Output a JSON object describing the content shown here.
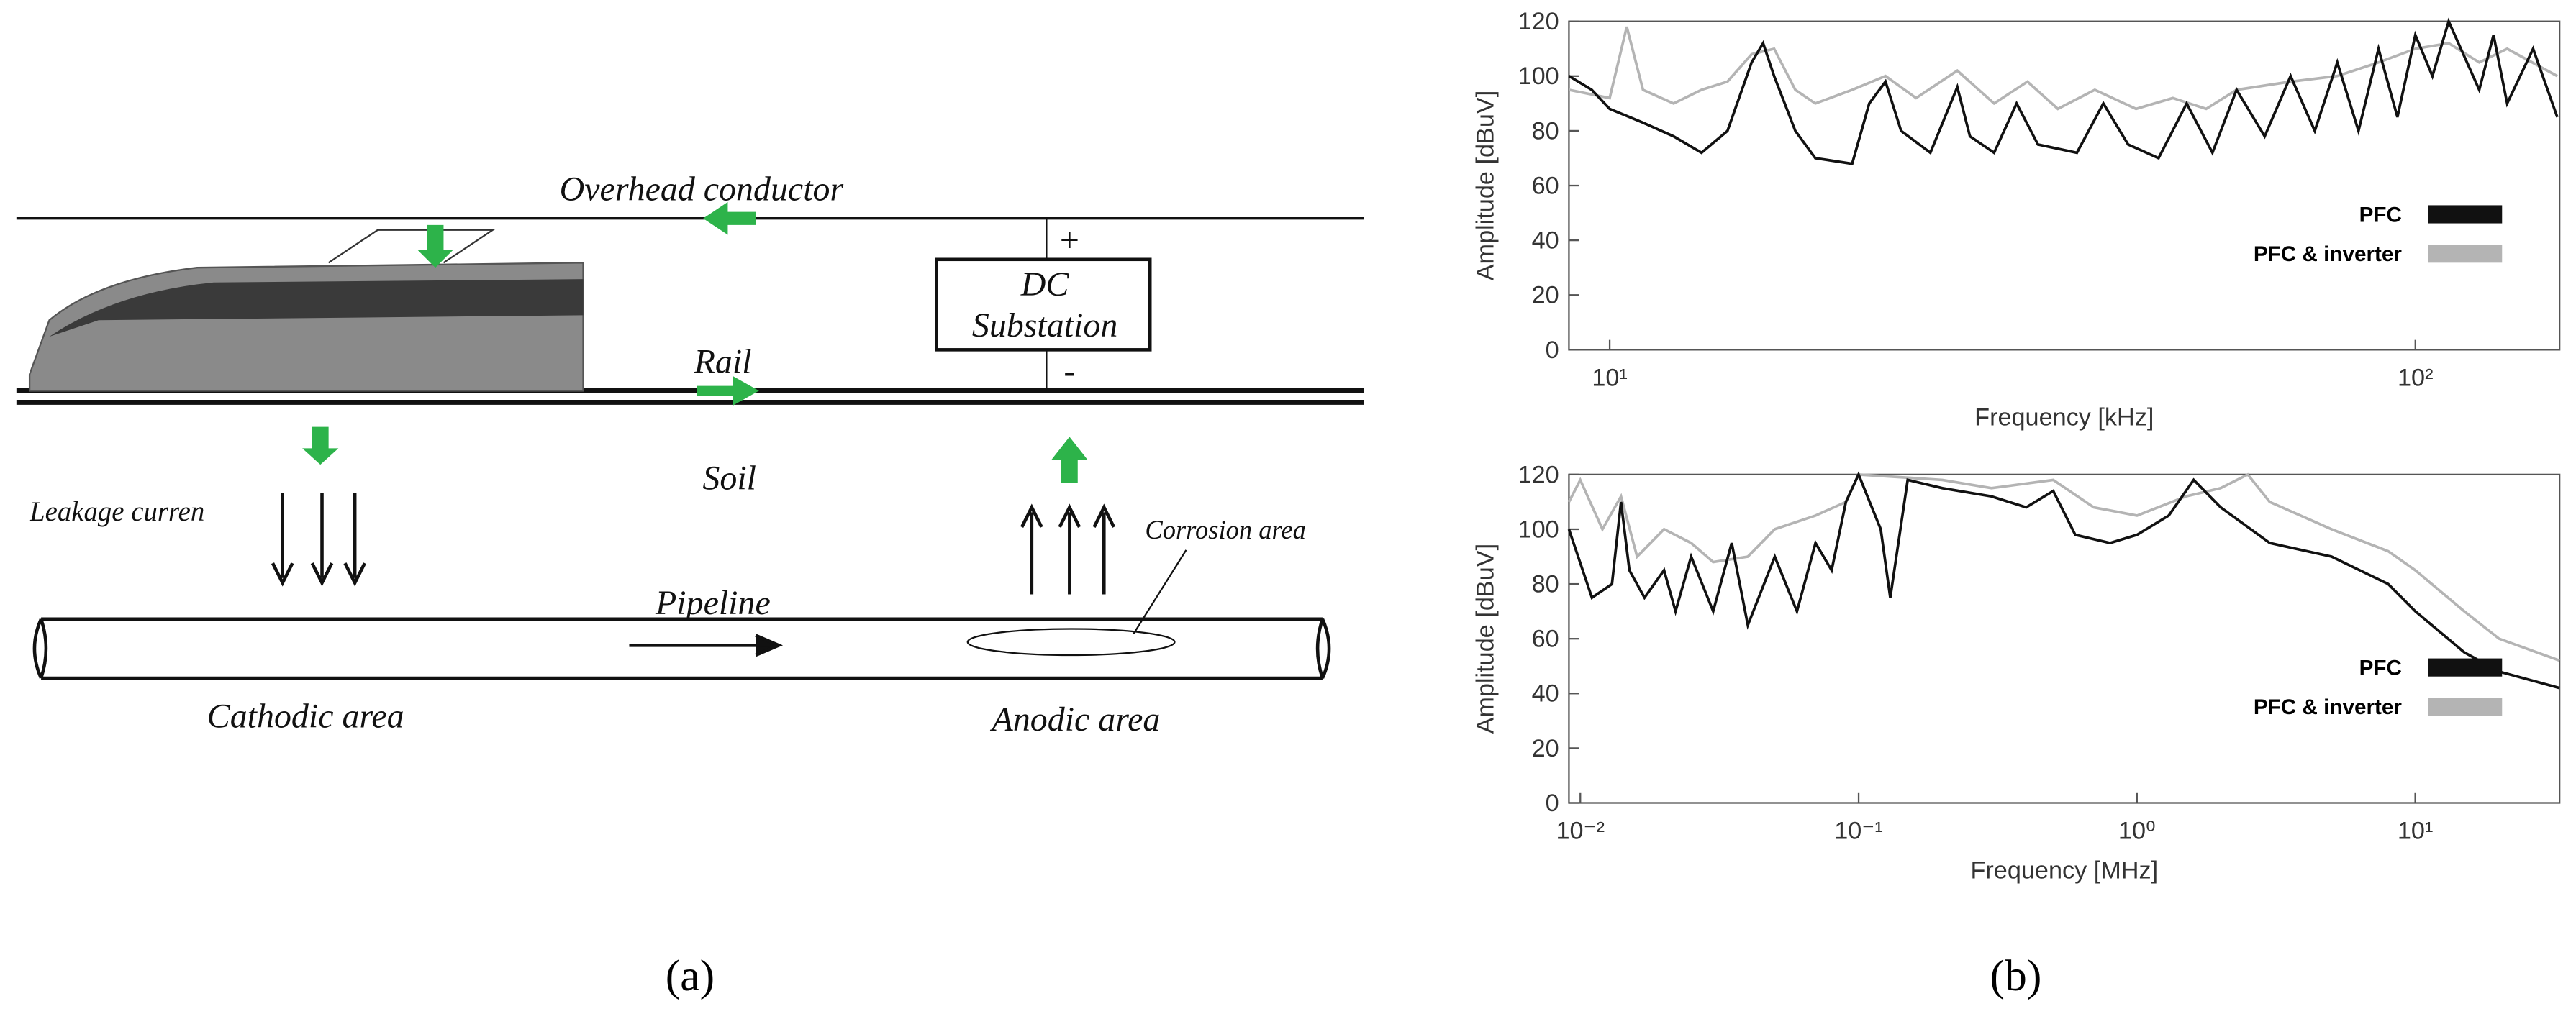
{
  "diagram": {
    "overhead": "Overhead conductor",
    "rail": "Rail",
    "soil": "Soil",
    "leakage": "Leakage curren",
    "pipeline": "Pipeline",
    "corrosion": "Corrosion area",
    "cathodic": "Cathodic area",
    "anodic": "Anodic area",
    "dc": "DC",
    "substation": "Substation",
    "plus": "+",
    "minus": "-"
  },
  "panel_labels": [
    "(a)",
    "(b)"
  ],
  "chart_data": [
    {
      "type": "line",
      "x_label": "Frequency [kHz]",
      "y_label": "Amplitude [dBuV]",
      "xscale": "log",
      "xlim": [
        8.9,
        151
      ],
      "ylim": [
        0,
        120
      ],
      "xticks": [
        {
          "value": 10,
          "label": "10¹"
        },
        {
          "value": 100,
          "label": "10²"
        }
      ],
      "yticks": [
        0,
        20,
        40,
        60,
        80,
        100,
        120
      ],
      "legend": "lower right",
      "series": [
        {
          "name": "PFC",
          "color": "#111111",
          "x": [
            8.9,
            9.5,
            10,
            11,
            12,
            13,
            14,
            15,
            15.5,
            16,
            17,
            18,
            20,
            21,
            22,
            23,
            25,
            27,
            28,
            30,
            32,
            34,
            38,
            41,
            44,
            48,
            52,
            56,
            60,
            65,
            70,
            75,
            80,
            85,
            90,
            95,
            100,
            105,
            110,
            120,
            125,
            130,
            140,
            150
          ],
          "values": [
            100,
            95,
            88,
            83,
            78,
            72,
            80,
            105,
            112,
            100,
            80,
            70,
            68,
            90,
            98,
            80,
            72,
            96,
            78,
            72,
            90,
            75,
            72,
            90,
            75,
            70,
            90,
            72,
            95,
            78,
            100,
            80,
            105,
            80,
            110,
            85,
            115,
            100,
            120,
            95,
            115,
            90,
            110,
            85
          ]
        },
        {
          "name": "PFC & inverter",
          "color": "#b4b4b4",
          "x": [
            8.9,
            10,
            10.5,
            11,
            12,
            13,
            14,
            15,
            16,
            17,
            18,
            20,
            22,
            24,
            27,
            30,
            33,
            36,
            40,
            45,
            50,
            55,
            60,
            70,
            80,
            90,
            100,
            110,
            120,
            130,
            150
          ],
          "values": [
            95,
            92,
            118,
            95,
            90,
            95,
            98,
            108,
            110,
            95,
            90,
            95,
            100,
            92,
            102,
            90,
            98,
            88,
            95,
            88,
            92,
            88,
            95,
            98,
            100,
            105,
            110,
            112,
            105,
            110,
            100
          ]
        }
      ]
    },
    {
      "type": "line",
      "x_label": "Frequency [MHz]",
      "y_label": "Amplitude [dBuV]",
      "xscale": "log",
      "xlim": [
        0.0091,
        33
      ],
      "ylim": [
        0,
        120
      ],
      "xticks": [
        {
          "value": 0.01,
          "label": "10⁻²"
        },
        {
          "value": 0.1,
          "label": "10⁻¹"
        },
        {
          "value": 1,
          "label": "10⁰"
        },
        {
          "value": 10,
          "label": "10¹"
        }
      ],
      "yticks": [
        0,
        20,
        40,
        60,
        80,
        100,
        120
      ],
      "legend": "lower right",
      "series": [
        {
          "name": "PFC",
          "color": "#111111",
          "x": [
            0.0091,
            0.011,
            0.013,
            0.014,
            0.015,
            0.017,
            0.02,
            0.022,
            0.025,
            0.03,
            0.035,
            0.04,
            0.05,
            0.06,
            0.07,
            0.08,
            0.09,
            0.1,
            0.12,
            0.13,
            0.15,
            0.2,
            0.3,
            0.4,
            0.5,
            0.6,
            0.8,
            1,
            1.3,
            1.6,
            2,
            3,
            5,
            8,
            10,
            15,
            20,
            33
          ],
          "values": [
            100,
            75,
            80,
            110,
            85,
            75,
            85,
            70,
            90,
            70,
            95,
            65,
            90,
            70,
            95,
            85,
            110,
            120,
            100,
            75,
            118,
            115,
            112,
            108,
            114,
            98,
            95,
            98,
            105,
            118,
            108,
            95,
            90,
            80,
            70,
            55,
            48,
            42
          ]
        },
        {
          "name": "PFC & inverter",
          "color": "#b4b4b4",
          "x": [
            0.0091,
            0.01,
            0.012,
            0.014,
            0.016,
            0.02,
            0.025,
            0.03,
            0.04,
            0.05,
            0.07,
            0.09,
            0.1,
            0.2,
            0.3,
            0.5,
            0.7,
            1,
            1.5,
            2,
            2.5,
            3,
            5,
            8,
            10,
            15,
            20,
            33
          ],
          "values": [
            110,
            118,
            100,
            112,
            90,
            100,
            95,
            88,
            90,
            100,
            105,
            110,
            120,
            118,
            115,
            118,
            108,
            105,
            112,
            115,
            120,
            110,
            100,
            92,
            85,
            70,
            60,
            52
          ]
        }
      ]
    }
  ]
}
